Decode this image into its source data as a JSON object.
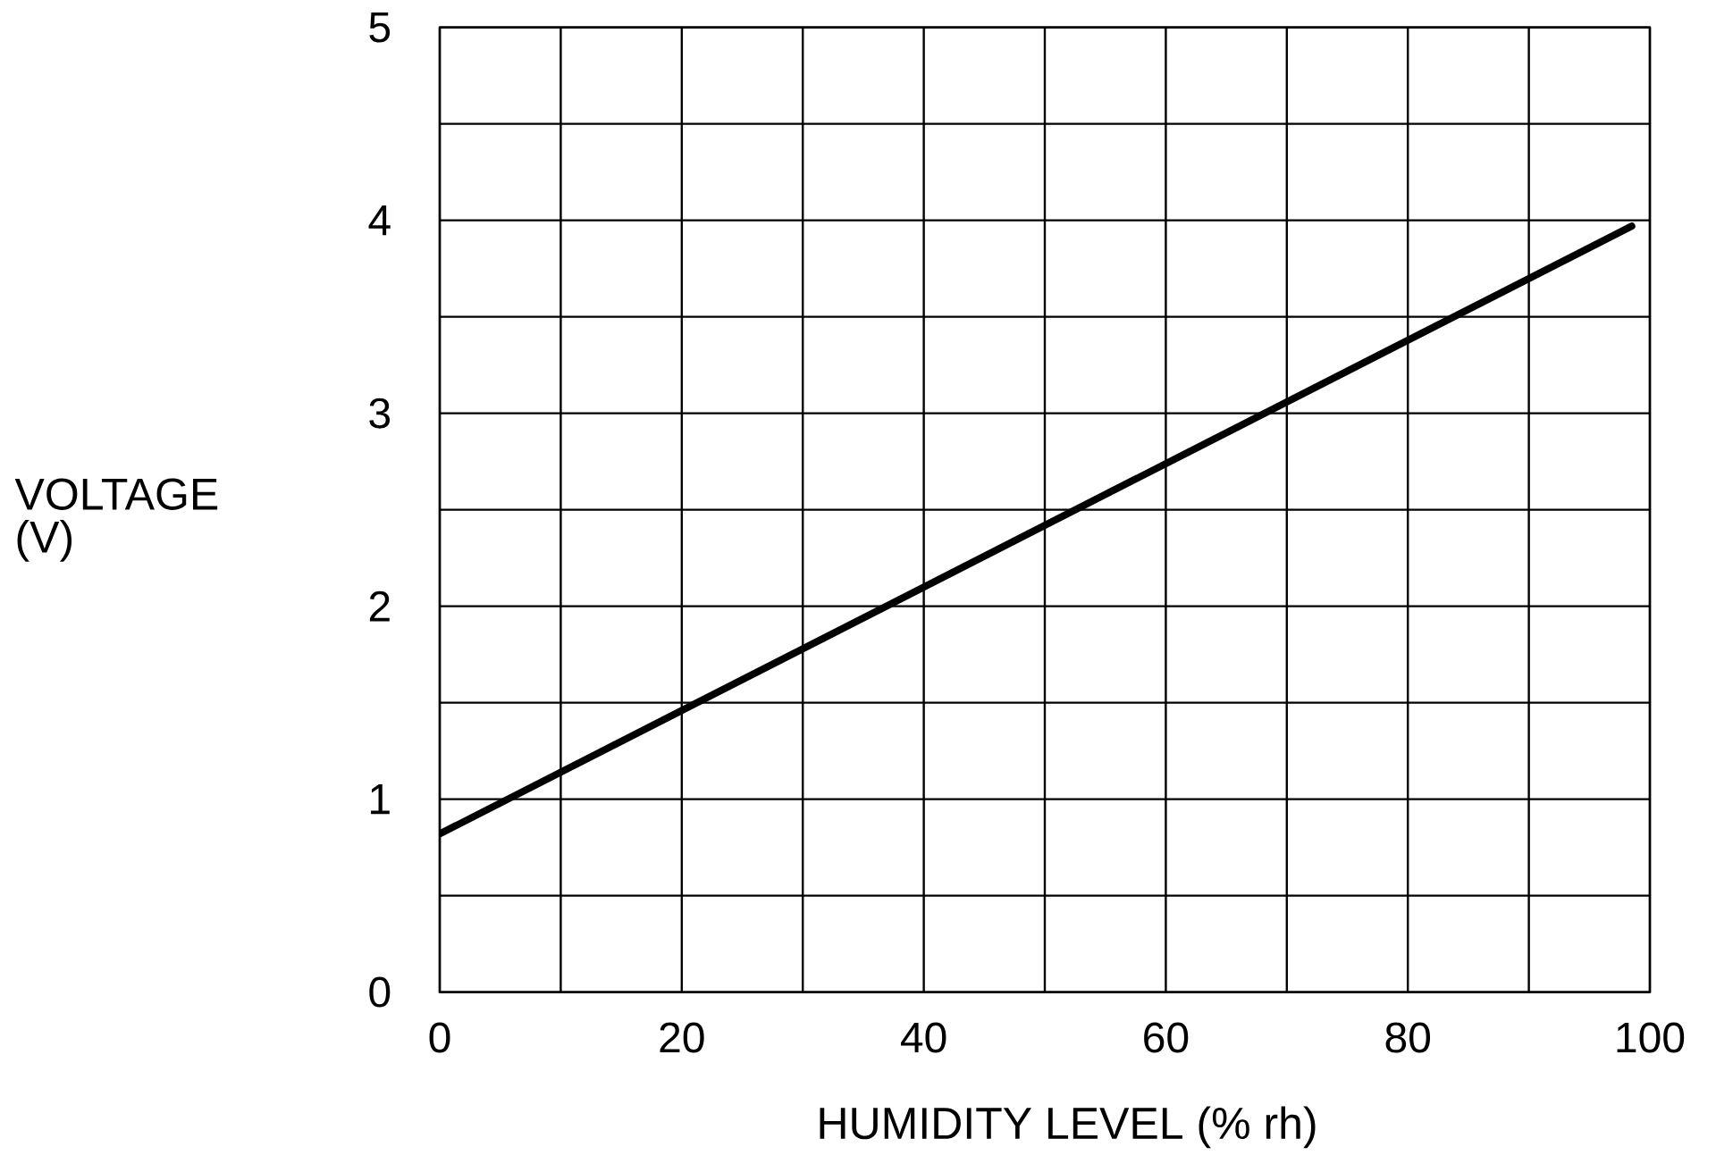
{
  "chart_data": {
    "type": "line",
    "xlabel": "HUMIDITY LEVEL (% rh)",
    "ylabel": "VOLTAGE (V)",
    "xlim": [
      0,
      100
    ],
    "ylim": [
      0,
      5
    ],
    "xticks": [
      0,
      {
        "value": 10,
        "label": null
      },
      20,
      {
        "value": 30,
        "label": null
      },
      40,
      {
        "value": 50,
        "label": null
      },
      60,
      {
        "value": 70,
        "label": null
      },
      80,
      {
        "value": 90,
        "label": null
      },
      100
    ],
    "yticks": [
      0,
      {
        "value": 0.5,
        "label": null
      },
      1,
      {
        "value": 1.5,
        "label": null
      },
      2,
      {
        "value": 2.5,
        "label": null
      },
      3,
      {
        "value": 3.5,
        "label": null
      },
      4,
      {
        "value": 4.5,
        "label": null
      },
      5
    ],
    "grid": true,
    "x": [
      0,
      98.5
    ],
    "series": [
      {
        "color": "#000000",
        "values": [
          0.82,
          3.97
        ]
      }
    ]
  }
}
